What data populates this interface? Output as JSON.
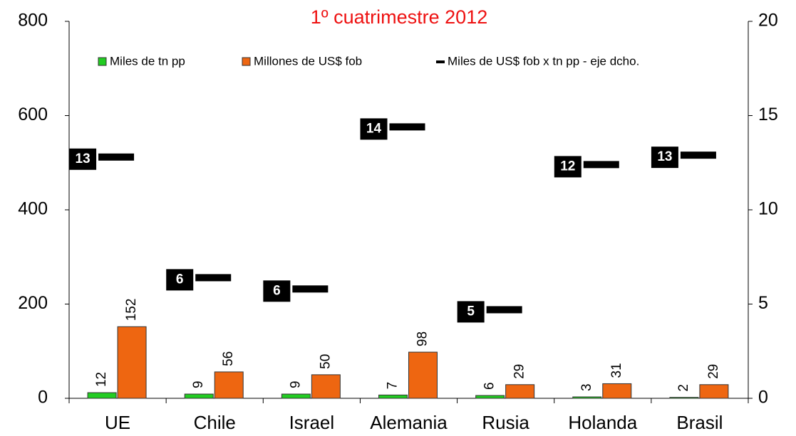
{
  "chart_data": {
    "type": "bar-line",
    "title": "1º cuatrimestre 2012",
    "categories": [
      "UE",
      "Chile",
      "Israel",
      "Alemania",
      "Rusia",
      "Holanda",
      "Brasil"
    ],
    "series": [
      {
        "name": "Miles de tn pp",
        "color": "#22cc22",
        "values": [
          12,
          9,
          9,
          7,
          6,
          3,
          2
        ]
      },
      {
        "name": "Millones de US$ fob",
        "color": "#ee6611",
        "values": [
          152,
          56,
          50,
          98,
          29,
          31,
          29
        ]
      },
      {
        "name": "Miles de US$ fob x tn pp - eje dcho.",
        "color": "#000000",
        "axis": "y2",
        "values": [
          12.8,
          6.4,
          5.8,
          14.4,
          4.7,
          12.4,
          12.9
        ],
        "value_labels": [
          "13",
          "6",
          "6",
          "14",
          "5",
          "12",
          "13"
        ]
      }
    ],
    "ylim": [
      0,
      800
    ],
    "yticks": [
      0,
      200,
      400,
      600,
      800
    ],
    "y2lim": [
      0,
      20
    ],
    "y2ticks": [
      0,
      5,
      10,
      15,
      20
    ]
  }
}
